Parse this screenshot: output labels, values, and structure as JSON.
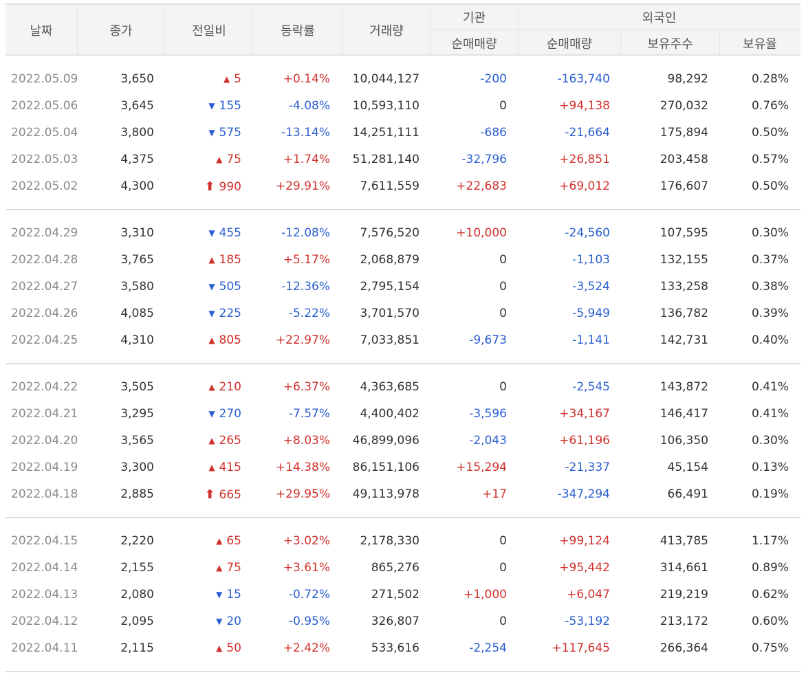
{
  "header": {
    "date": "날짜",
    "close": "종가",
    "diff": "전일비",
    "rate": "등락률",
    "volume": "거래량",
    "institution": "기관",
    "institution_net": "순매매량",
    "foreigner": "외국인",
    "foreigner_net": "순매매량",
    "foreigner_holdings": "보유주수",
    "foreigner_ratio": "보유율"
  },
  "icons": {
    "up": "▲",
    "down": "▼",
    "limit_up": "⬆"
  },
  "colors": {
    "up": "#d0312d",
    "down": "#2a5ed1"
  },
  "groups": [
    {
      "rows": [
        {
          "date": "2022.05.09",
          "close": "3,650",
          "dir": "up",
          "diff": "5",
          "rate": "+0.14%",
          "volume": "10,044,127",
          "inst": "-200",
          "f_net": "-163,740",
          "f_hold": "98,292",
          "f_ratio": "0.28%"
        },
        {
          "date": "2022.05.06",
          "close": "3,645",
          "dir": "down",
          "diff": "155",
          "rate": "-4.08%",
          "volume": "10,593,110",
          "inst": "0",
          "f_net": "+94,138",
          "f_hold": "270,032",
          "f_ratio": "0.76%"
        },
        {
          "date": "2022.05.04",
          "close": "3,800",
          "dir": "down",
          "diff": "575",
          "rate": "-13.14%",
          "volume": "14,251,111",
          "inst": "-686",
          "f_net": "-21,664",
          "f_hold": "175,894",
          "f_ratio": "0.50%"
        },
        {
          "date": "2022.05.03",
          "close": "4,375",
          "dir": "up",
          "diff": "75",
          "rate": "+1.74%",
          "volume": "51,281,140",
          "inst": "-32,796",
          "f_net": "+26,851",
          "f_hold": "203,458",
          "f_ratio": "0.57%"
        },
        {
          "date": "2022.05.02",
          "close": "4,300",
          "dir": "limit",
          "diff": "990",
          "rate": "+29.91%",
          "volume": "7,611,559",
          "inst": "+22,683",
          "f_net": "+69,012",
          "f_hold": "176,607",
          "f_ratio": "0.50%"
        }
      ]
    },
    {
      "rows": [
        {
          "date": "2022.04.29",
          "close": "3,310",
          "dir": "down",
          "diff": "455",
          "rate": "-12.08%",
          "volume": "7,576,520",
          "inst": "+10,000",
          "f_net": "-24,560",
          "f_hold": "107,595",
          "f_ratio": "0.30%"
        },
        {
          "date": "2022.04.28",
          "close": "3,765",
          "dir": "up",
          "diff": "185",
          "rate": "+5.17%",
          "volume": "2,068,879",
          "inst": "0",
          "f_net": "-1,103",
          "f_hold": "132,155",
          "f_ratio": "0.37%"
        },
        {
          "date": "2022.04.27",
          "close": "3,580",
          "dir": "down",
          "diff": "505",
          "rate": "-12.36%",
          "volume": "2,795,154",
          "inst": "0",
          "f_net": "-3,524",
          "f_hold": "133,258",
          "f_ratio": "0.38%"
        },
        {
          "date": "2022.04.26",
          "close": "4,085",
          "dir": "down",
          "diff": "225",
          "rate": "-5.22%",
          "volume": "3,701,570",
          "inst": "0",
          "f_net": "-5,949",
          "f_hold": "136,782",
          "f_ratio": "0.39%"
        },
        {
          "date": "2022.04.25",
          "close": "4,310",
          "dir": "up",
          "diff": "805",
          "rate": "+22.97%",
          "volume": "7,033,851",
          "inst": "-9,673",
          "f_net": "-1,141",
          "f_hold": "142,731",
          "f_ratio": "0.40%"
        }
      ]
    },
    {
      "rows": [
        {
          "date": "2022.04.22",
          "close": "3,505",
          "dir": "up",
          "diff": "210",
          "rate": "+6.37%",
          "volume": "4,363,685",
          "inst": "0",
          "f_net": "-2,545",
          "f_hold": "143,872",
          "f_ratio": "0.41%"
        },
        {
          "date": "2022.04.21",
          "close": "3,295",
          "dir": "down",
          "diff": "270",
          "rate": "-7.57%",
          "volume": "4,400,402",
          "inst": "-3,596",
          "f_net": "+34,167",
          "f_hold": "146,417",
          "f_ratio": "0.41%"
        },
        {
          "date": "2022.04.20",
          "close": "3,565",
          "dir": "up",
          "diff": "265",
          "rate": "+8.03%",
          "volume": "46,899,096",
          "inst": "-2,043",
          "f_net": "+61,196",
          "f_hold": "106,350",
          "f_ratio": "0.30%"
        },
        {
          "date": "2022.04.19",
          "close": "3,300",
          "dir": "up",
          "diff": "415",
          "rate": "+14.38%",
          "volume": "86,151,106",
          "inst": "+15,294",
          "f_net": "-21,337",
          "f_hold": "45,154",
          "f_ratio": "0.13%"
        },
        {
          "date": "2022.04.18",
          "close": "2,885",
          "dir": "limit",
          "diff": "665",
          "rate": "+29.95%",
          "volume": "49,113,978",
          "inst": "+17",
          "f_net": "-347,294",
          "f_hold": "66,491",
          "f_ratio": "0.19%"
        }
      ]
    },
    {
      "rows": [
        {
          "date": "2022.04.15",
          "close": "2,220",
          "dir": "up",
          "diff": "65",
          "rate": "+3.02%",
          "volume": "2,178,330",
          "inst": "0",
          "f_net": "+99,124",
          "f_hold": "413,785",
          "f_ratio": "1.17%"
        },
        {
          "date": "2022.04.14",
          "close": "2,155",
          "dir": "up",
          "diff": "75",
          "rate": "+3.61%",
          "volume": "865,276",
          "inst": "0",
          "f_net": "+95,442",
          "f_hold": "314,661",
          "f_ratio": "0.89%"
        },
        {
          "date": "2022.04.13",
          "close": "2,080",
          "dir": "down",
          "diff": "15",
          "rate": "-0.72%",
          "volume": "271,502",
          "inst": "+1,000",
          "f_net": "+6,047",
          "f_hold": "219,219",
          "f_ratio": "0.62%"
        },
        {
          "date": "2022.04.12",
          "close": "2,095",
          "dir": "down",
          "diff": "20",
          "rate": "-0.95%",
          "volume": "326,807",
          "inst": "0",
          "f_net": "-53,192",
          "f_hold": "213,172",
          "f_ratio": "0.60%"
        },
        {
          "date": "2022.04.11",
          "close": "2,115",
          "dir": "up",
          "diff": "50",
          "rate": "+2.42%",
          "volume": "533,616",
          "inst": "-2,254",
          "f_net": "+117,645",
          "f_hold": "266,364",
          "f_ratio": "0.75%"
        }
      ]
    }
  ]
}
